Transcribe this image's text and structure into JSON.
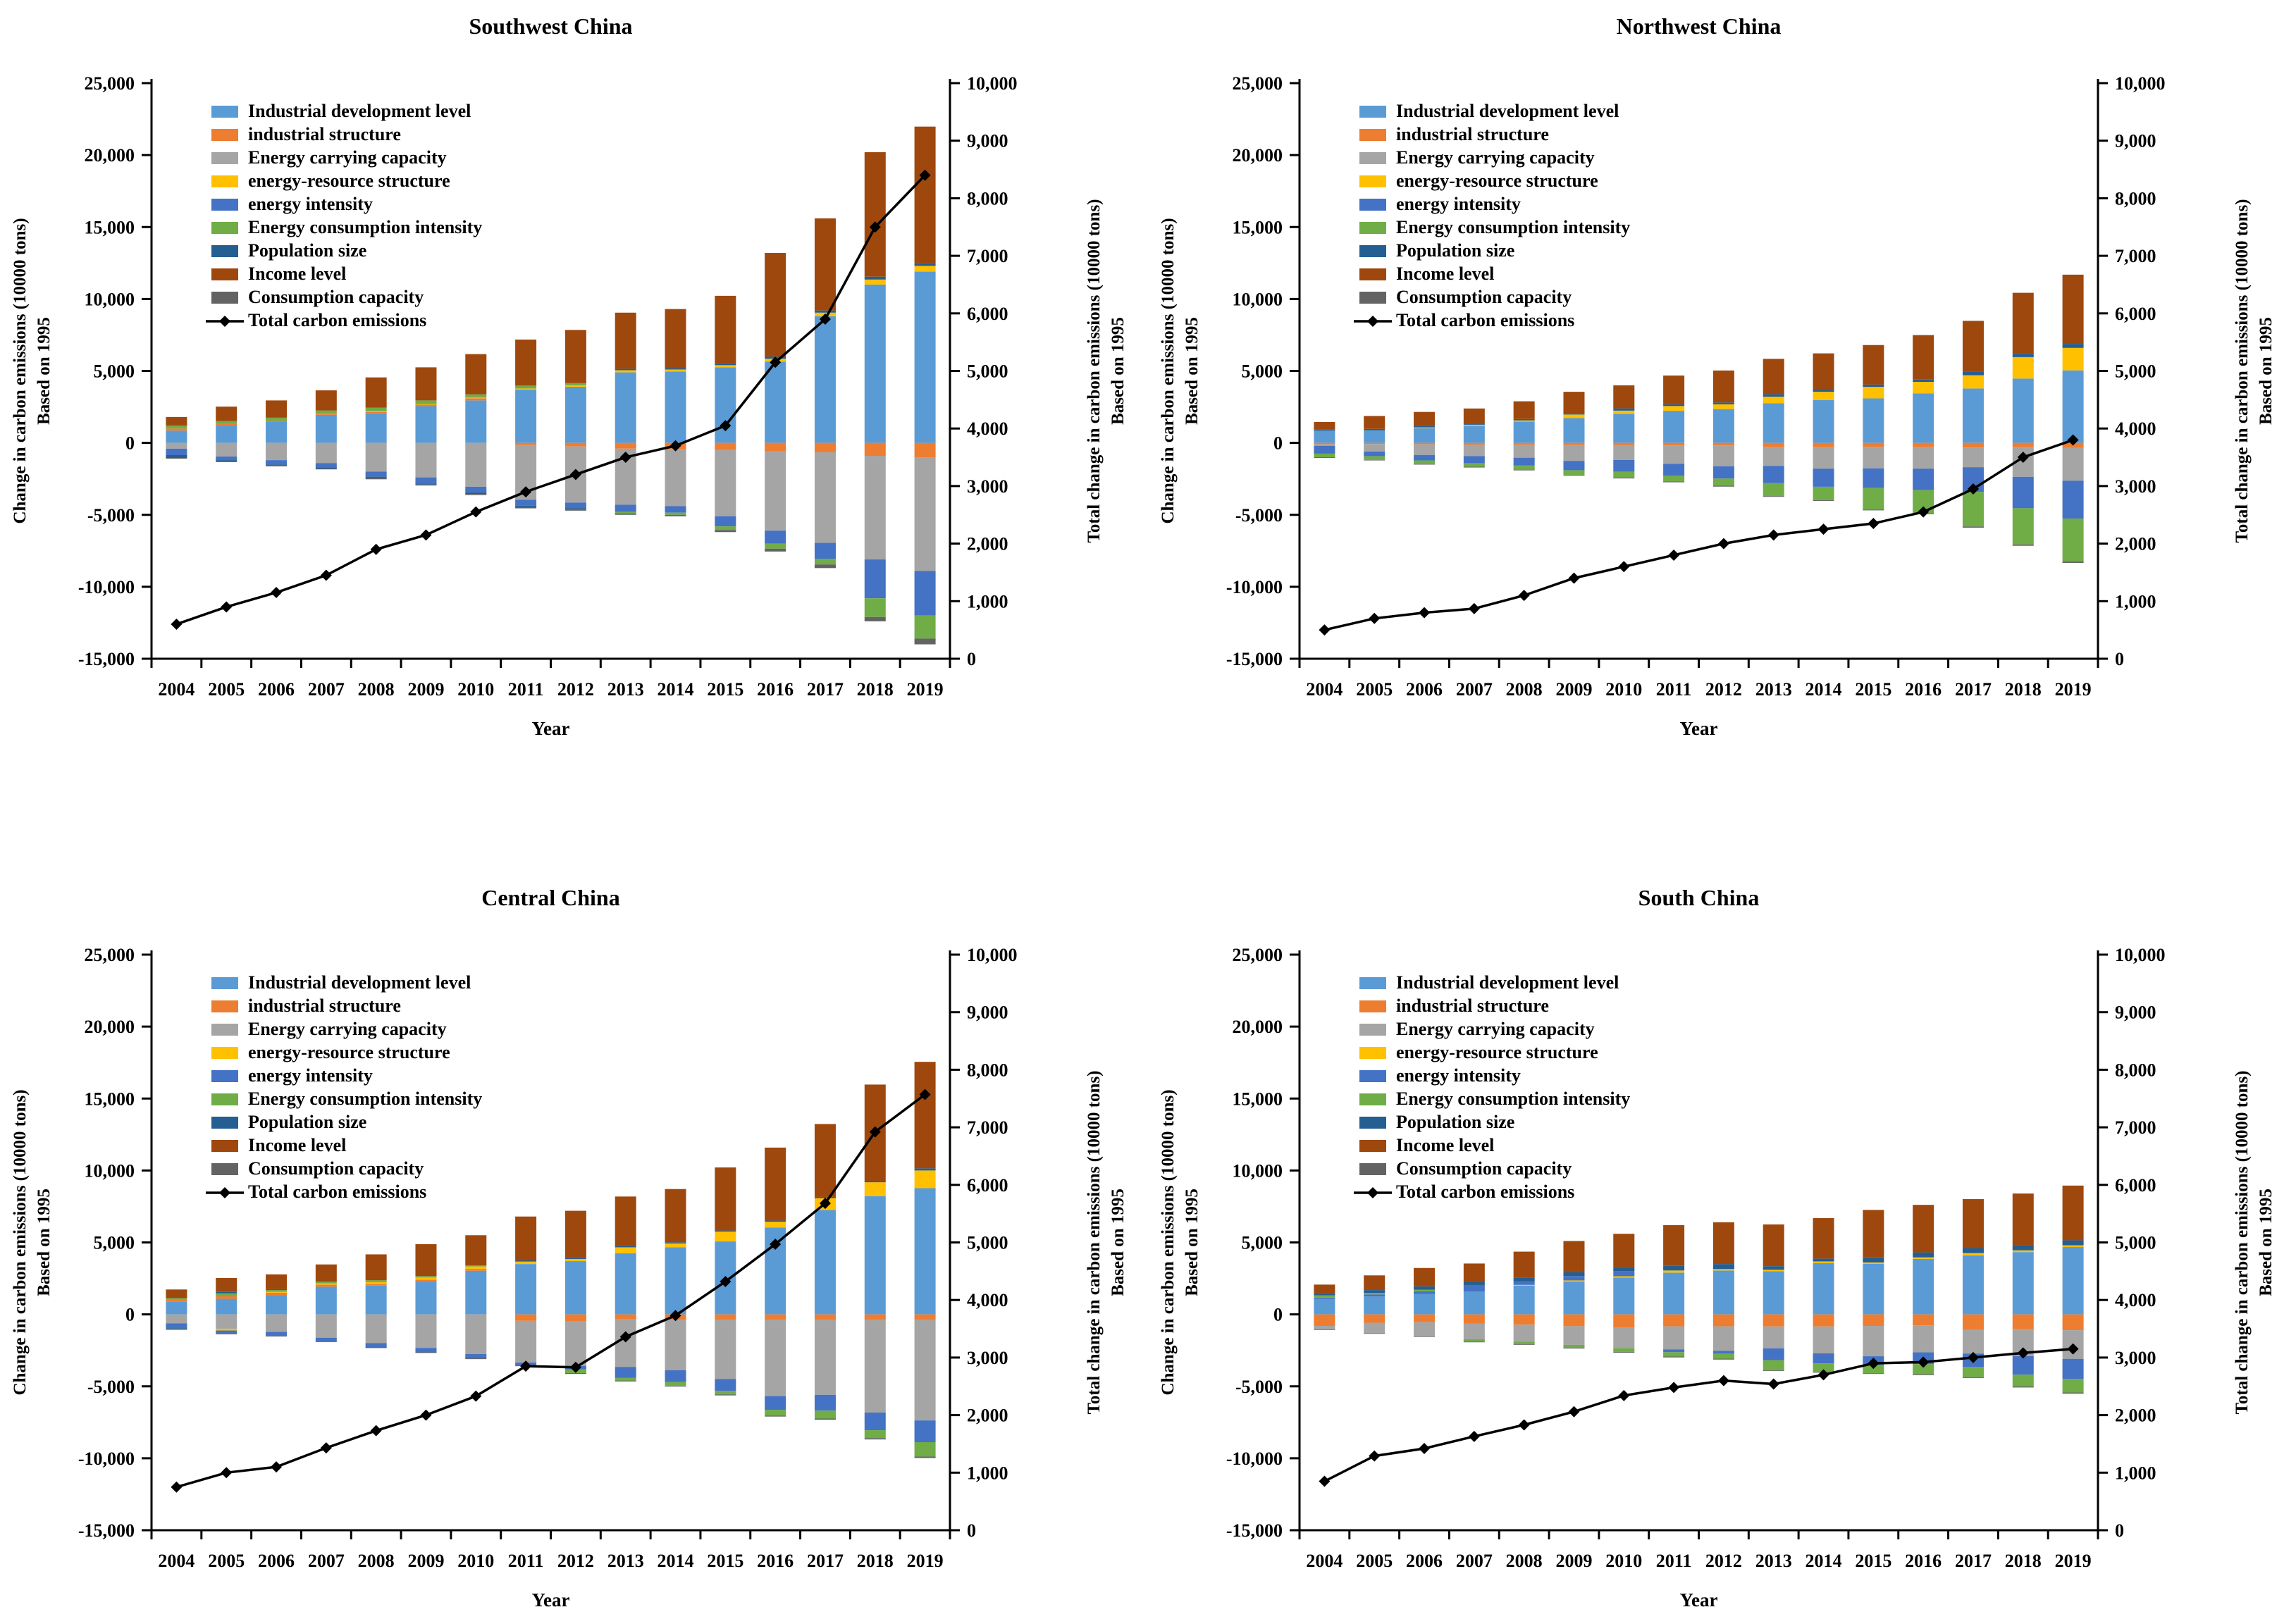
{
  "page": {
    "description": "Four-panel LMDI decomposition figure of carbon emission changes for Chinese regions, 2004-2019"
  },
  "colors": {
    "industrial_development_level": "#5B9BD5",
    "industrial_structure": "#ED7D31",
    "energy_carrying_capacity": "#A5A5A5",
    "energy_resource_structure": "#FFC000",
    "energy_intensity": "#4472C4",
    "energy_consumption_intensity": "#70AD47",
    "population_size": "#255E91",
    "income_level": "#9E480E",
    "consumption_capacity": "#636363",
    "total_line": "#000000"
  },
  "legend": [
    {
      "label": "Industrial development level",
      "color": "#5B9BD5",
      "type": "box"
    },
    {
      "label": "industrial structure",
      "color": "#ED7D31",
      "type": "box"
    },
    {
      "label": "Energy carrying capacity",
      "color": "#A5A5A5",
      "type": "box"
    },
    {
      "label": "energy-resource structure",
      "color": "#FFC000",
      "type": "box"
    },
    {
      "label": "energy intensity",
      "color": "#4472C4",
      "type": "box"
    },
    {
      "label": "Energy consumption intensity",
      "color": "#70AD47",
      "type": "box"
    },
    {
      "label": "Population size",
      "color": "#255E91",
      "type": "box"
    },
    {
      "label": "Income level",
      "color": "#9E480E",
      "type": "box"
    },
    {
      "label": "Consumption capacity",
      "color": "#636363",
      "type": "box"
    },
    {
      "label": "Total carbon emissions",
      "color": "#000000",
      "type": "line"
    }
  ],
  "axes": {
    "x_label": "Year",
    "years": [
      "2004",
      "2005",
      "2006",
      "2007",
      "2008",
      "2009",
      "2010",
      "2011",
      "2012",
      "2013",
      "2014",
      "2015",
      "2016",
      "2017",
      "2018",
      "2019"
    ],
    "left_label_line1": "Change in carbon emissions (10000 tons)",
    "left_label_line2": "Based on 1995",
    "right_label_line1": "Total change in carbon emissions (10000 tons)",
    "right_label_line2": "Based on 1995",
    "left_ticks": [
      "25,000",
      "20,000",
      "15,000",
      "10,000",
      "5,000",
      "0",
      "-5,000",
      "-10,000",
      "-15,000"
    ],
    "right_ticks": [
      "10,000",
      "9,000",
      "8,000",
      "7,000",
      "6,000",
      "5,000",
      "4,000",
      "3,000",
      "2,000",
      "1,000",
      "0"
    ],
    "left_ylim": [
      -15000,
      25000
    ],
    "right_ylim": [
      0,
      10000
    ],
    "grid": false,
    "legend_position": "upper-left-inside"
  },
  "chart_data": [
    {
      "type": "bar",
      "subtype": "stacked-bar-with-line",
      "title": "Southwest China",
      "categories": [
        "2004",
        "2005",
        "2006",
        "2007",
        "2008",
        "2009",
        "2010",
        "2011",
        "2012",
        "2013",
        "2014",
        "2015",
        "2016",
        "2017",
        "2018",
        "2019"
      ],
      "left_ylim": [
        -15000,
        25000
      ],
      "right_ylim": [
        0,
        10000
      ],
      "series": [
        {
          "name": "Industrial development level",
          "values": [
            850,
            1250,
            1450,
            1950,
            2050,
            2550,
            2950,
            3700,
            3900,
            4900,
            4950,
            5250,
            5650,
            8800,
            11000,
            11900
          ]
        },
        {
          "name": "industrial structure",
          "values": [
            150,
            100,
            100,
            100,
            100,
            100,
            150,
            -150,
            -250,
            -400,
            -450,
            -500,
            -600,
            -650,
            -900,
            -1000
          ]
        },
        {
          "name": "Energy carrying capacity",
          "values": [
            -400,
            -950,
            -1200,
            -1400,
            -2000,
            -2400,
            -3050,
            -3800,
            -3900,
            -3900,
            -3950,
            -4600,
            -5500,
            -6300,
            -7200,
            -7900
          ]
        },
        {
          "name": "energy-resource structure",
          "values": [
            0,
            0,
            0,
            0,
            50,
            50,
            50,
            80,
            100,
            150,
            150,
            150,
            200,
            250,
            350,
            400
          ]
        },
        {
          "name": "energy intensity",
          "values": [
            -450,
            -250,
            -300,
            -300,
            -350,
            -420,
            -420,
            -420,
            -380,
            -500,
            -450,
            -700,
            -900,
            -1100,
            -2700,
            -3100
          ]
        },
        {
          "name": "Energy consumption intensity",
          "values": [
            200,
            170,
            200,
            200,
            250,
            250,
            220,
            200,
            150,
            -100,
            -150,
            -250,
            -350,
            -400,
            -1300,
            -1600
          ]
        },
        {
          "name": "Population size",
          "values": [
            -200,
            -100,
            -80,
            -80,
            -100,
            -80,
            -80,
            -100,
            -100,
            100,
            100,
            120,
            150,
            150,
            200,
            200
          ]
        },
        {
          "name": "Income level",
          "values": [
            600,
            1000,
            1200,
            1400,
            2100,
            2300,
            2800,
            3200,
            3700,
            3900,
            4100,
            4700,
            7200,
            6400,
            8650,
            9480
          ]
        },
        {
          "name": "Consumption capacity",
          "values": [
            -50,
            -40,
            -50,
            -60,
            -80,
            -60,
            -80,
            -80,
            -80,
            -100,
            -100,
            -150,
            -200,
            -250,
            -300,
            -400
          ]
        }
      ],
      "line": {
        "name": "Total carbon emissions",
        "axis": "right",
        "values": [
          600,
          900,
          1150,
          1450,
          1900,
          2150,
          2550,
          2900,
          3200,
          3500,
          3700,
          4050,
          5150,
          5900,
          7500,
          8400
        ]
      }
    },
    {
      "type": "bar",
      "subtype": "stacked-bar-with-line",
      "title": "Northwest China",
      "categories": [
        "2004",
        "2005",
        "2006",
        "2007",
        "2008",
        "2009",
        "2010",
        "2011",
        "2012",
        "2013",
        "2014",
        "2015",
        "2016",
        "2017",
        "2018",
        "2019"
      ],
      "left_ylim": [
        -15000,
        25000
      ],
      "right_ylim": [
        0,
        10000
      ],
      "series": [
        {
          "name": "Industrial development level",
          "values": [
            850,
            870,
            1030,
            1180,
            1480,
            1720,
            2020,
            2230,
            2350,
            2750,
            2980,
            3090,
            3440,
            3780,
            4470,
            5040
          ]
        },
        {
          "name": "industrial structure",
          "values": [
            -100,
            -80,
            -100,
            -120,
            -130,
            -150,
            -160,
            -170,
            -180,
            -300,
            -300,
            -280,
            -300,
            -320,
            -300,
            -340
          ]
        },
        {
          "name": "Energy carrying capacity",
          "values": [
            -100,
            -520,
            -740,
            -800,
            -900,
            -1100,
            -1030,
            -1280,
            -1450,
            -1300,
            -1490,
            -1490,
            -1490,
            -1370,
            -2060,
            -2290
          ]
        },
        {
          "name": "energy-resource structure",
          "values": [
            0,
            0,
            50,
            80,
            80,
            250,
            220,
            330,
            330,
            460,
            570,
            800,
            800,
            920,
            1490,
            1560
          ]
        },
        {
          "name": "energy intensity",
          "values": [
            -550,
            -330,
            -380,
            -490,
            -530,
            -650,
            -820,
            -820,
            -850,
            -1200,
            -1260,
            -1370,
            -1490,
            -1720,
            -2180,
            -2630
          ]
        },
        {
          "name": "Energy consumption intensity",
          "values": [
            -250,
            -250,
            -250,
            -250,
            -300,
            -330,
            -410,
            -410,
            -490,
            -900,
            -920,
            -1490,
            -1600,
            -2400,
            -2520,
            -2980
          ]
        },
        {
          "name": "Population size",
          "values": [
            100,
            100,
            80,
            100,
            100,
            100,
            160,
            120,
            130,
            180,
            150,
            160,
            160,
            230,
            230,
            280
          ]
        },
        {
          "name": "Income level",
          "values": [
            500,
            900,
            990,
            1030,
            1230,
            1480,
            1600,
            2000,
            2220,
            2450,
            2520,
            2750,
            3090,
            3550,
            4240,
            4810
          ]
        },
        {
          "name": "Consumption capacity",
          "values": [
            -50,
            -40,
            -40,
            -50,
            -50,
            -50,
            -50,
            -60,
            -70,
            -50,
            -60,
            -60,
            -70,
            -80,
            -90,
            -100
          ]
        }
      ],
      "line": {
        "name": "Total carbon emissions",
        "axis": "right",
        "values": [
          500,
          700,
          800,
          870,
          1100,
          1400,
          1600,
          1800,
          2000,
          2150,
          2250,
          2350,
          2550,
          2950,
          3500,
          3800
        ]
      }
    },
    {
      "type": "bar",
      "subtype": "stacked-bar-with-line",
      "title": "Central China",
      "categories": [
        "2004",
        "2005",
        "2006",
        "2007",
        "2008",
        "2009",
        "2010",
        "2011",
        "2012",
        "2013",
        "2014",
        "2015",
        "2016",
        "2017",
        "2018",
        "2019"
      ],
      "left_ylim": [
        -15000,
        25000
      ],
      "right_ylim": [
        0,
        10000
      ],
      "series": [
        {
          "name": "Industrial development level",
          "values": [
            880,
            1080,
            1330,
            1920,
            2000,
            2280,
            3030,
            3500,
            3700,
            4250,
            4660,
            5070,
            6030,
            7260,
            8220,
            8770
          ]
        },
        {
          "name": "industrial structure",
          "values": [
            150,
            200,
            180,
            150,
            120,
            130,
            130,
            -450,
            -500,
            -350,
            -380,
            -380,
            -380,
            -380,
            -380,
            -380
          ]
        },
        {
          "name": "Energy carrying capacity",
          "values": [
            -630,
            -1000,
            -1220,
            -1620,
            -2000,
            -2330,
            -2750,
            -2900,
            -3080,
            -3300,
            -3500,
            -4110,
            -5300,
            -5210,
            -6440,
            -6990
          ]
        },
        {
          "name": "energy-resource structure",
          "values": [
            0,
            -120,
            60,
            80,
            120,
            150,
            170,
            170,
            150,
            410,
            270,
            680,
            410,
            820,
            960,
            1230
          ]
        },
        {
          "name": "energy intensity",
          "values": [
            -330,
            -220,
            -280,
            -270,
            -250,
            -250,
            -250,
            -200,
            -250,
            -750,
            -820,
            -820,
            -950,
            -1100,
            -1230,
            -1510
          ]
        },
        {
          "name": "Energy consumption intensity",
          "values": [
            100,
            180,
            120,
            120,
            130,
            100,
            80,
            0,
            -250,
            -200,
            -250,
            -250,
            -400,
            -550,
            -550,
            -1000
          ]
        },
        {
          "name": "Population size",
          "values": [
            -60,
            100,
            60,
            0,
            -50,
            -60,
            -60,
            80,
            80,
            100,
            80,
            80,
            80,
            80,
            80,
            150
          ]
        },
        {
          "name": "Income level",
          "values": [
            600,
            970,
            1030,
            1200,
            1800,
            2220,
            2090,
            3050,
            3270,
            3430,
            3700,
            4380,
            5070,
            5070,
            6710,
            7400
          ]
        },
        {
          "name": "Consumption capacity",
          "values": [
            -50,
            -40,
            -40,
            -40,
            -40,
            -40,
            -50,
            -50,
            -60,
            -60,
            -60,
            -70,
            -70,
            -80,
            -90,
            -100
          ]
        }
      ],
      "line": {
        "name": "Total carbon emissions",
        "axis": "right",
        "values": [
          750,
          1000,
          1100,
          1430,
          1730,
          2000,
          2330,
          2850,
          2830,
          3360,
          3730,
          4320,
          4970,
          5680,
          6920,
          7570
        ]
      }
    },
    {
      "type": "bar",
      "subtype": "stacked-bar-with-line",
      "title": "South China",
      "categories": [
        "2004",
        "2005",
        "2006",
        "2007",
        "2008",
        "2009",
        "2010",
        "2011",
        "2012",
        "2013",
        "2014",
        "2015",
        "2016",
        "2017",
        "2018",
        "2019"
      ],
      "left_ylim": [
        -15000,
        25000
      ],
      "right_ylim": [
        0,
        10000
      ],
      "series": [
        {
          "name": "Industrial development level",
          "values": [
            1070,
            1240,
            1410,
            1580,
            2000,
            2280,
            2550,
            2900,
            3050,
            3000,
            3560,
            3510,
            3860,
            4100,
            4330,
            4680
          ]
        },
        {
          "name": "industrial structure",
          "values": [
            -800,
            -580,
            -545,
            -630,
            -715,
            -820,
            -900,
            -830,
            -830,
            -840,
            -840,
            -800,
            -770,
            -1080,
            -1030,
            -1100
          ]
        },
        {
          "name": "Energy carrying capacity",
          "values": [
            -250,
            -730,
            -985,
            -1100,
            -1190,
            -1300,
            -1450,
            -1600,
            -1700,
            -1520,
            -1870,
            -2110,
            -1870,
            -1640,
            -1870,
            -1990
          ]
        },
        {
          "name": "energy-resource structure",
          "values": [
            0,
            0,
            0,
            0,
            50,
            80,
            100,
            150,
            100,
            100,
            120,
            100,
            100,
            160,
            120,
            120
          ]
        },
        {
          "name": "energy intensity",
          "values": [
            100,
            150,
            200,
            460,
            255,
            300,
            350,
            -200,
            -200,
            -820,
            -700,
            -590,
            -820,
            -940,
            -1290,
            -1400
          ]
        },
        {
          "name": "Energy consumption intensity",
          "values": [
            150,
            100,
            100,
            -170,
            -170,
            -200,
            -250,
            -300,
            -350,
            -700,
            -590,
            -590,
            -700,
            -700,
            -820,
            -940
          ]
        },
        {
          "name": "Population size",
          "values": [
            150,
            200,
            240,
            220,
            255,
            280,
            300,
            320,
            350,
            250,
            200,
            350,
            350,
            350,
            350,
            350
          ]
        },
        {
          "name": "Income level",
          "values": [
            600,
            1020,
            1275,
            1275,
            1800,
            2160,
            2300,
            2830,
            2900,
            2900,
            2810,
            3300,
            3300,
            3400,
            3600,
            3800
          ]
        },
        {
          "name": "Consumption capacity",
          "values": [
            -30,
            -30,
            -40,
            -40,
            -40,
            -50,
            -60,
            -60,
            -60,
            -50,
            -50,
            -50,
            -60,
            -60,
            -70,
            -80
          ]
        }
      ],
      "line": {
        "name": "Total carbon emissions",
        "axis": "right",
        "values": [
          850,
          1290,
          1420,
          1630,
          1830,
          2060,
          2340,
          2480,
          2600,
          2540,
          2700,
          2900,
          2920,
          3000,
          3080,
          3150
        ]
      }
    }
  ]
}
